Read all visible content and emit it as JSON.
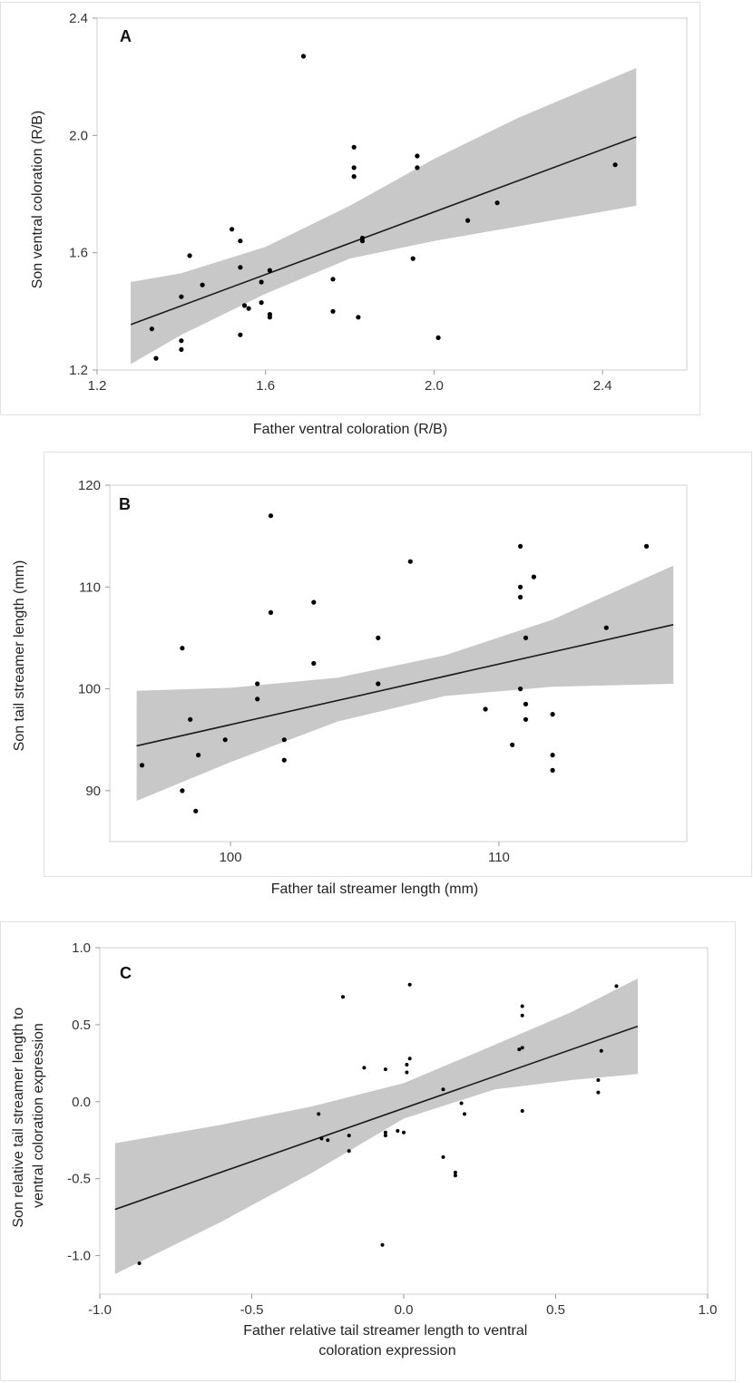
{
  "chart_data": [
    {
      "type": "scatter",
      "panel_label": "A",
      "xlabel": "Father ventral coloration (R/B)",
      "ylabel": "Son ventral coloration (R/B)",
      "xlim": [
        1.2,
        2.6
      ],
      "ylim": [
        1.2,
        2.4
      ],
      "xticks": [
        1.2,
        1.6,
        2.0,
        2.4
      ],
      "yticks": [
        1.2,
        1.6,
        2.0,
        2.4
      ],
      "tick_labels_x": [
        "1.2",
        "1.6",
        "2.0",
        "2.4"
      ],
      "tick_labels_y": [
        "1.2",
        "1.6",
        "2.0",
        "2.4"
      ],
      "fit_line": {
        "x": [
          1.28,
          2.48
        ],
        "y": [
          1.355,
          1.995
        ]
      },
      "confidence_band": {
        "x": [
          1.28,
          1.4,
          1.6,
          1.8,
          2.0,
          2.2,
          2.48
        ],
        "upper": [
          1.5,
          1.53,
          1.62,
          1.76,
          1.92,
          2.06,
          2.23
        ],
        "lower": [
          1.22,
          1.32,
          1.46,
          1.58,
          1.64,
          1.69,
          1.76
        ]
      },
      "x": [
        1.69,
        1.81,
        1.81,
        1.81,
        1.96,
        1.96,
        2.43,
        1.83,
        1.83,
        1.52,
        1.54,
        1.42,
        1.54,
        1.45,
        1.4,
        1.61,
        1.59,
        1.56,
        1.55,
        1.59,
        1.61,
        1.61,
        1.76,
        1.76,
        1.82,
        1.95,
        2.15,
        2.08,
        1.33,
        1.4,
        1.4,
        1.34,
        1.54,
        2.01
      ],
      "y": [
        2.27,
        1.96,
        1.89,
        1.86,
        1.93,
        1.89,
        1.9,
        1.65,
        1.64,
        1.68,
        1.64,
        1.59,
        1.55,
        1.49,
        1.45,
        1.54,
        1.5,
        1.41,
        1.42,
        1.43,
        1.39,
        1.38,
        1.51,
        1.4,
        1.38,
        1.58,
        1.77,
        1.71,
        1.34,
        1.3,
        1.27,
        1.24,
        1.32,
        1.31
      ]
    },
    {
      "type": "scatter",
      "panel_label": "B",
      "xlabel": "Father tail streamer length (mm)",
      "ylabel": "Son tail streamer length (mm)",
      "xlim": [
        95.5,
        117
      ],
      "ylim": [
        85,
        120
      ],
      "xticks": [
        100,
        110
      ],
      "yticks": [
        90,
        100,
        110,
        120
      ],
      "tick_labels_x": [
        "100",
        "110"
      ],
      "tick_labels_y": [
        "90",
        "100",
        "110",
        "120"
      ],
      "fit_line": {
        "x": [
          96.5,
          116.5
        ],
        "y": [
          94.4,
          106.3
        ]
      },
      "confidence_band": {
        "x": [
          96.5,
          100,
          104,
          108,
          112,
          116.5
        ],
        "upper": [
          99.8,
          100.1,
          101.1,
          103.3,
          106.8,
          112.1
        ],
        "lower": [
          89.0,
          92.8,
          96.8,
          99.3,
          100.2,
          100.5
        ]
      },
      "x": [
        101.5,
        101.5,
        106.7,
        103.1,
        103.1,
        98.2,
        101.0,
        101.0,
        98.5,
        99.8,
        102.0,
        102.0,
        98.8,
        98.2,
        98.7,
        96.7,
        105.5,
        105.5,
        110.8,
        110.8,
        110.8,
        111.3,
        111.0,
        110.8,
        111.0,
        111.0,
        112.0,
        112.0,
        112.0,
        109.5,
        110.5,
        114.0,
        115.5
      ],
      "y": [
        117.0,
        107.5,
        112.5,
        108.5,
        102.5,
        104.0,
        100.5,
        99.0,
        97.0,
        95.0,
        95.0,
        93.0,
        93.5,
        90.0,
        88.0,
        92.5,
        105.0,
        100.5,
        114.0,
        110.0,
        109.0,
        111.0,
        105.0,
        100.0,
        98.5,
        97.0,
        97.5,
        93.5,
        92.0,
        98.0,
        94.5,
        106.0,
        114.0
      ]
    },
    {
      "type": "scatter",
      "panel_label": "C",
      "xlabel": "Father relative  tail streamer length to ventral coloration expression",
      "ylabel": "Son relative tail streamer length to ventral coloration expression",
      "xlim": [
        -1.0,
        1.0
      ],
      "ylim": [
        -1.25,
        1.0
      ],
      "xticks": [
        -1.0,
        -0.5,
        0.0,
        0.5,
        1.0
      ],
      "yticks": [
        -1.0,
        -0.5,
        0.0,
        0.5,
        1.0
      ],
      "tick_labels_x": [
        "-1.0",
        "-0.5",
        "0.0",
        "0.5",
        "1.0"
      ],
      "tick_labels_y": [
        "-1.0",
        "-0.5",
        "0.0",
        "0.5",
        "1.0"
      ],
      "fit_line": {
        "x": [
          -0.95,
          0.77
        ],
        "y": [
          -0.7,
          0.49
        ]
      },
      "confidence_band": {
        "x": [
          -0.95,
          -0.6,
          -0.3,
          0.0,
          0.3,
          0.55,
          0.77
        ],
        "upper": [
          -0.27,
          -0.15,
          -0.03,
          0.12,
          0.37,
          0.58,
          0.8
        ],
        "lower": [
          -1.12,
          -0.78,
          -0.46,
          -0.11,
          0.08,
          0.14,
          0.18
        ]
      },
      "x": [
        -0.2,
        0.02,
        -0.13,
        -0.06,
        0.02,
        0.01,
        0.01,
        -0.28,
        -0.27,
        -0.25,
        -0.18,
        -0.06,
        -0.06,
        -0.02,
        0.0,
        -0.18,
        0.13,
        0.17,
        0.17,
        0.13,
        0.19,
        0.2,
        -0.07,
        -0.87,
        0.39,
        0.39,
        0.39,
        0.38,
        0.39,
        0.7,
        0.65,
        0.64,
        0.64
      ],
      "y": [
        0.68,
        0.76,
        0.22,
        0.21,
        0.28,
        0.24,
        0.19,
        -0.08,
        -0.24,
        -0.25,
        -0.22,
        -0.2,
        -0.22,
        -0.19,
        -0.2,
        -0.32,
        0.08,
        -0.46,
        -0.48,
        -0.36,
        -0.01,
        -0.08,
        -0.93,
        -1.05,
        0.62,
        0.56,
        0.35,
        0.34,
        -0.06,
        0.75,
        0.33,
        0.14,
        0.06
      ]
    }
  ]
}
